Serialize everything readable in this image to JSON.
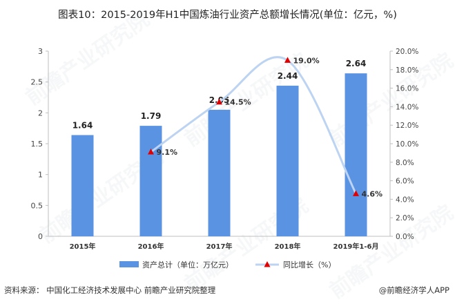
{
  "title": "图表10：2015-2019年H1中国炼油行业资产总额增长情况(单位：亿元，%)",
  "source": "资料来源：  中国化工经济技术发展中心 前瞻产业研究院整理",
  "credit": "@前瞻经济学人APP",
  "watermark": "前瞻产业研究院",
  "colors": {
    "bar": "#5b93e3",
    "line": "#bcd3f1",
    "marker": "#e00000"
  },
  "chart_data": {
    "type": "bar+line",
    "categories": [
      "2015年",
      "2016年",
      "2017年",
      "2018年",
      "2019年1-6月"
    ],
    "series": [
      {
        "name": "资产总计（单位：万亿元）",
        "type": "bar",
        "axis": "left",
        "values": [
          1.64,
          1.79,
          2.05,
          2.44,
          2.64
        ],
        "labels": [
          "1.64",
          "1.79",
          "2.05",
          "2.44",
          "2.64"
        ]
      },
      {
        "name": "同比增长（%）",
        "type": "line",
        "axis": "right",
        "values": [
          null,
          9.1,
          14.5,
          19.0,
          4.6
        ],
        "labels": [
          "",
          "9.1%",
          "14.5%",
          "19.0%",
          "4.6%"
        ]
      }
    ],
    "y_left": {
      "min": 0,
      "max": 3,
      "ticks": [
        "0",
        "0.5",
        "1",
        "1.5",
        "2",
        "2.5",
        "3"
      ]
    },
    "y_right": {
      "min": 0,
      "max": 20,
      "ticks": [
        "0.0%",
        "2.0%",
        "4.0%",
        "6.0%",
        "8.0%",
        "10.0%",
        "12.0%",
        "14.0%",
        "16.0%",
        "18.0%",
        "20.0%"
      ]
    },
    "legend": "bottom"
  }
}
